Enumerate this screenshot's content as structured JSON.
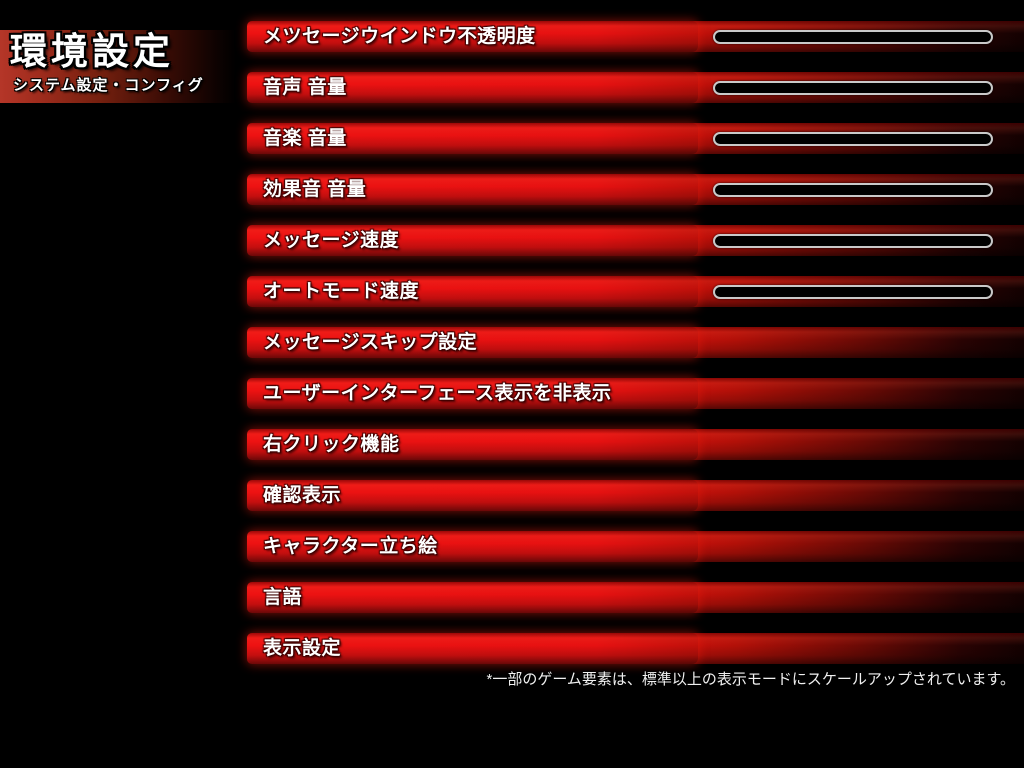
{
  "header": {
    "title": "環境設定",
    "subtitle": "システム設定・コンフィグ"
  },
  "settings": [
    {
      "label": "メツセージウインドウ不透明度",
      "slider": true
    },
    {
      "label": "音声 音量",
      "slider": true
    },
    {
      "label": "音楽 音量",
      "slider": true
    },
    {
      "label": "効果音 音量",
      "slider": true
    },
    {
      "label": "メッセージ速度",
      "slider": true
    },
    {
      "label": "オートモード速度",
      "slider": true
    },
    {
      "label": "メッセージスキップ設定",
      "slider": false
    },
    {
      "label": "ユーザーインターフェース表示を非表示",
      "slider": false
    },
    {
      "label": "右クリック機能",
      "slider": false
    },
    {
      "label": "確認表示",
      "slider": false
    },
    {
      "label": "キャラクター立ち絵",
      "slider": false
    },
    {
      "label": "言語",
      "slider": false
    },
    {
      "label": "表示設定",
      "slider": false
    }
  ],
  "footnote": "*一部のゲーム要素は、標準以上の表示モードにスケールアップされています。",
  "colors": {
    "background": "#000000",
    "bar_bright_red": "#ee1212",
    "bar_dark_end": "#140101",
    "title_block_red": "#b53628",
    "slider_outline": "#c9c9c9",
    "text": "#ffffff"
  }
}
